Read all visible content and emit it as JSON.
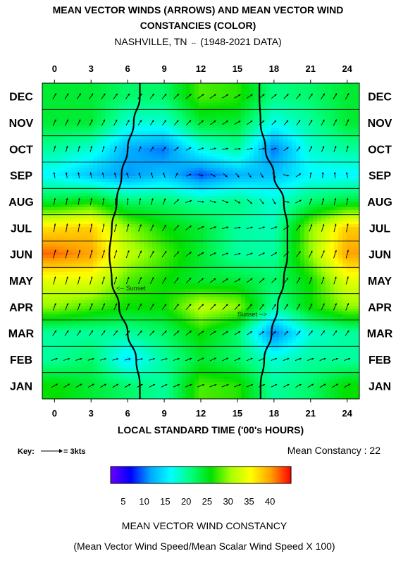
{
  "title": {
    "line1": "MEAN VECTOR WINDS (ARROWS) AND MEAN VECTOR WIND",
    "line2": "CONSTANCIES (COLOR)",
    "line3": "NASHVILLE, TN",
    "line3_suffix": "(1948-2021 DATA)"
  },
  "chart_data": {
    "type": "heatmap",
    "xlabel": "LOCAL STANDARD TIME ('00's HOURS)",
    "x_ticks": [
      "0",
      "3",
      "6",
      "9",
      "12",
      "15",
      "18",
      "21",
      "24"
    ],
    "x_tick_values": [
      0,
      3,
      6,
      9,
      12,
      15,
      18,
      21,
      24
    ],
    "xlim": [
      -1,
      25
    ],
    "months_top_to_bottom": [
      "DEC",
      "NOV",
      "OCT",
      "SEP",
      "AUG",
      "JUL",
      "JUN",
      "MAY",
      "APR",
      "MAR",
      "FEB",
      "JAN"
    ],
    "hours_sampled": [
      0,
      3,
      6,
      9,
      12,
      15,
      18,
      21,
      24
    ],
    "constancy_by_month": {
      "DEC": [
        24,
        24,
        22,
        22,
        28,
        27,
        21,
        22,
        24
      ],
      "NOV": [
        24,
        24,
        18,
        18,
        24,
        24,
        17,
        20,
        24
      ],
      "OCT": [
        20,
        18,
        12,
        10,
        17,
        20,
        10,
        18,
        20
      ],
      "SEP": [
        16,
        13,
        11,
        13,
        9,
        12,
        13,
        16,
        16
      ],
      "AUG": [
        24,
        26,
        22,
        22,
        20,
        21,
        18,
        22,
        24
      ],
      "JUL": [
        37,
        38,
        30,
        26,
        24,
        20,
        19,
        30,
        38
      ],
      "JUN": [
        42,
        40,
        32,
        28,
        24,
        20,
        20,
        30,
        40
      ],
      "MAY": [
        34,
        34,
        28,
        26,
        24,
        24,
        22,
        26,
        34
      ],
      "APR": [
        30,
        28,
        26,
        26,
        32,
        30,
        20,
        26,
        30
      ],
      "MAR": [
        20,
        20,
        20,
        22,
        26,
        22,
        10,
        18,
        20
      ],
      "FEB": [
        20,
        22,
        15,
        20,
        24,
        22,
        18,
        20,
        20
      ],
      "JAN": [
        26,
        24,
        22,
        20,
        28,
        27,
        20,
        22,
        26
      ]
    },
    "mean_wind_dir_deg_by_month": {
      "DEC": [
        210,
        215,
        215,
        220,
        235,
        240,
        230,
        215,
        210
      ],
      "NOV": [
        205,
        205,
        210,
        215,
        230,
        240,
        225,
        210,
        205
      ],
      "OCT": [
        195,
        195,
        200,
        220,
        250,
        265,
        250,
        205,
        195
      ],
      "SEP": [
        170,
        170,
        160,
        160,
        290,
        320,
        330,
        190,
        170
      ],
      "AUG": [
        190,
        190,
        185,
        200,
        280,
        300,
        330,
        200,
        190
      ],
      "JUL": [
        190,
        190,
        195,
        210,
        245,
        260,
        250,
        200,
        190
      ],
      "JUN": [
        195,
        195,
        200,
        215,
        240,
        255,
        240,
        205,
        195
      ],
      "MAY": [
        195,
        195,
        200,
        210,
        230,
        240,
        225,
        200,
        195
      ],
      "APR": [
        200,
        200,
        205,
        215,
        225,
        225,
        215,
        205,
        200
      ],
      "MAR": [
        215,
        215,
        220,
        225,
        235,
        240,
        230,
        220,
        215
      ],
      "FEB": [
        250,
        255,
        255,
        255,
        245,
        245,
        250,
        250,
        250
      ],
      "JAN": [
        240,
        240,
        240,
        245,
        250,
        250,
        245,
        240,
        240
      ]
    },
    "sunrise_hour_by_month": {
      "DEC": 7.0,
      "NOV": 6.5,
      "OCT": 6.0,
      "SEP": 5.5,
      "AUG": 5.1,
      "JUL": 4.7,
      "JUN": 4.5,
      "MAY": 4.7,
      "APR": 5.3,
      "MAR": 6.0,
      "FEB": 6.7,
      "JAN": 7.0
    },
    "sunset_hour_by_month": {
      "DEC": 16.8,
      "NOV": 16.9,
      "OCT": 17.3,
      "SEP": 18.0,
      "AUG": 18.8,
      "JUL": 19.1,
      "JUN": 19.1,
      "MAY": 18.8,
      "APR": 18.3,
      "MAR": 17.8,
      "FEB": 17.2,
      "JAN": 16.9
    },
    "annotations": {
      "sunrise": "<-- Sunset",
      "sunset": "Sunset -->"
    },
    "colorbar": {
      "ticks": [
        "5",
        "10",
        "15",
        "20",
        "25",
        "30",
        "35",
        "40"
      ],
      "tick_values": [
        5,
        10,
        15,
        20,
        25,
        30,
        35,
        40
      ],
      "range": [
        2,
        45
      ],
      "colors": [
        "#6a00ff",
        "#0000ff",
        "#00a8ff",
        "#00ffff",
        "#00ff80",
        "#00e000",
        "#a8ff00",
        "#ffff00",
        "#ffa000",
        "#ff0000"
      ],
      "label": "MEAN VECTOR WIND CONSTANCY",
      "sublabel": "(Mean Vector Wind Speed/Mean Scalar Wind Speed X 100)"
    },
    "key_label": "Key:",
    "key_value": "= 3kts",
    "mean_constancy_label": "Mean Constancy : 22"
  }
}
